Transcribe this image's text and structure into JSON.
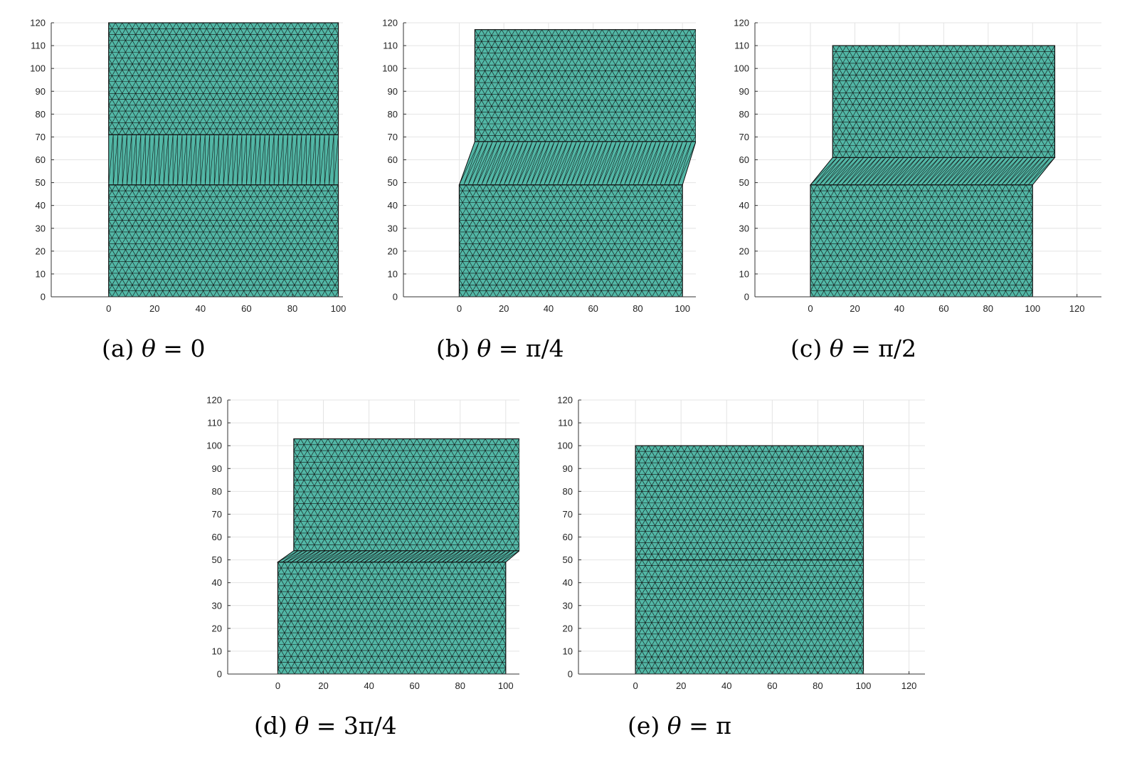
{
  "colors": {
    "mesh_fill": "#52b7a6",
    "mesh_edge": "#111111",
    "grid": "#e4e4e4",
    "axis": "#333333"
  },
  "panels": [
    {
      "caption_prefix": "(a)",
      "caption_theta": "θ",
      "caption_value": " = 0",
      "yticks": [
        "0",
        "10",
        "20",
        "30",
        "40",
        "50",
        "60",
        "70",
        "80",
        "90",
        "100",
        "110",
        "120"
      ],
      "xticks": [
        "0",
        "20",
        "40",
        "60",
        "80",
        "100"
      ]
    },
    {
      "caption_prefix": "(b)",
      "caption_theta": "θ",
      "caption_value": " = π/4",
      "yticks": [
        "0",
        "10",
        "20",
        "30",
        "40",
        "50",
        "60",
        "70",
        "80",
        "90",
        "100",
        "110",
        "120"
      ],
      "xticks": [
        "0",
        "20",
        "40",
        "60",
        "80",
        "100"
      ]
    },
    {
      "caption_prefix": "(c)",
      "caption_theta": "θ",
      "caption_value": " = π/2",
      "yticks": [
        "0",
        "10",
        "20",
        "30",
        "40",
        "50",
        "60",
        "70",
        "80",
        "90",
        "100",
        "110",
        "120"
      ],
      "xticks": [
        "0",
        "20",
        "40",
        "60",
        "80",
        "100",
        "120"
      ]
    },
    {
      "caption_prefix": "(d)",
      "caption_theta": "θ",
      "caption_value": " = 3π/4",
      "yticks": [
        "0",
        "10",
        "20",
        "30",
        "40",
        "50",
        "60",
        "70",
        "80",
        "90",
        "100",
        "110",
        "120"
      ],
      "xticks": [
        "0",
        "20",
        "40",
        "60",
        "80",
        "100"
      ]
    },
    {
      "caption_prefix": "(e)",
      "caption_theta": "θ",
      "caption_value": " = π",
      "yticks": [
        "0",
        "10",
        "20",
        "30",
        "40",
        "50",
        "60",
        "70",
        "80",
        "90",
        "100",
        "110",
        "120"
      ],
      "xticks": [
        "0",
        "20",
        "40",
        "60",
        "80",
        "100",
        "120"
      ]
    }
  ],
  "chart_data": [
    {
      "type": "mesh",
      "xlim": [
        -25,
        102
      ],
      "ylim": [
        0,
        120
      ],
      "grid": true,
      "bottom_block": {
        "x": [
          0,
          100
        ],
        "y": [
          0,
          49
        ]
      },
      "top_block": {
        "x": [
          0,
          100
        ],
        "y": [
          71,
          120
        ]
      },
      "band": [
        [
          0,
          49
        ],
        [
          100,
          49
        ],
        [
          100,
          71
        ],
        [
          0,
          71
        ]
      ]
    },
    {
      "type": "mesh",
      "xlim": [
        -25,
        106
      ],
      "ylim": [
        0,
        120
      ],
      "grid": true,
      "bottom_block": {
        "x": [
          0,
          100
        ],
        "y": [
          0,
          49
        ]
      },
      "top_block": {
        "x": [
          7,
          106
        ],
        "y": [
          68,
          117
        ]
      },
      "band": [
        [
          0,
          49
        ],
        [
          100,
          49
        ],
        [
          106,
          68
        ],
        [
          7,
          68
        ]
      ]
    },
    {
      "type": "mesh",
      "xlim": [
        -25,
        131
      ],
      "ylim": [
        0,
        120
      ],
      "grid": true,
      "bottom_block": {
        "x": [
          0,
          100
        ],
        "y": [
          0,
          49
        ]
      },
      "top_block": {
        "x": [
          10,
          110
        ],
        "y": [
          61,
          110
        ]
      },
      "band": [
        [
          0,
          49
        ],
        [
          100,
          49
        ],
        [
          110,
          61
        ],
        [
          10,
          61
        ]
      ]
    },
    {
      "type": "mesh",
      "xlim": [
        -22,
        106
      ],
      "ylim": [
        0,
        120
      ],
      "grid": true,
      "bottom_block": {
        "x": [
          0,
          100
        ],
        "y": [
          0,
          49
        ]
      },
      "top_block": {
        "x": [
          7,
          106
        ],
        "y": [
          54,
          103
        ]
      },
      "band": [
        [
          0,
          49
        ],
        [
          100,
          49
        ],
        [
          106,
          54
        ],
        [
          7,
          54
        ]
      ]
    },
    {
      "type": "mesh",
      "xlim": [
        -25,
        127
      ],
      "ylim": [
        0,
        120
      ],
      "grid": true,
      "bottom_block": {
        "x": [
          0,
          100
        ],
        "y": [
          0,
          50
        ]
      },
      "top_block": {
        "x": [
          0,
          100
        ],
        "y": [
          50,
          100
        ]
      },
      "band": null
    }
  ]
}
